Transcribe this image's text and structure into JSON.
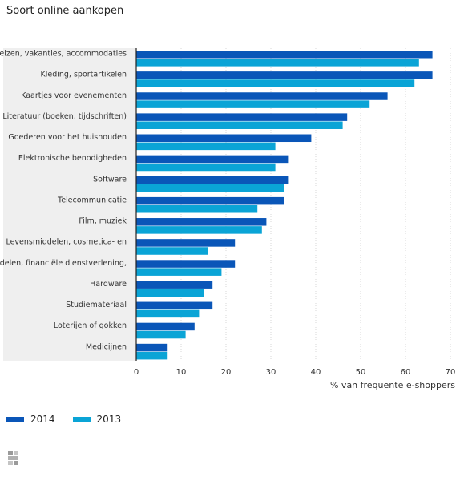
{
  "title": "Soort online aankopen",
  "chart_data": {
    "type": "bar",
    "orientation": "horizontal",
    "categories": [
      "Reizen, vakanties, accommodaties",
      "Kleding, sportartikelen",
      "Kaartjes voor evenementen",
      "Literatuur (boeken, tijdschriften)",
      "Goederen voor het huishouden",
      "Elektronische benodigheden",
      "Software",
      "Telecommunicatie",
      "Film, muziek",
      "Levensmiddelen, cosmetica- en",
      "aandelen, financiële dienstverlening,",
      "Hardware",
      "Studiemateriaal",
      "Loterijen of gokken",
      "Medicijnen"
    ],
    "series": [
      {
        "name": "2014",
        "color": "#0a56b8",
        "values": [
          66,
          66,
          56,
          47,
          39,
          34,
          34,
          33,
          29,
          22,
          22,
          17,
          17,
          13,
          7
        ]
      },
      {
        "name": "2013",
        "color": "#0aa4d6",
        "values": [
          63,
          62,
          52,
          46,
          31,
          31,
          33,
          27,
          28,
          16,
          19,
          15,
          14,
          11,
          7
        ]
      }
    ],
    "xlabel": "% van frequente e-shoppers",
    "xlim": [
      0,
      70
    ],
    "xticks": [
      0,
      10,
      20,
      30,
      40,
      50,
      60,
      70
    ],
    "grid": true,
    "legend_position": "bottom-left"
  }
}
